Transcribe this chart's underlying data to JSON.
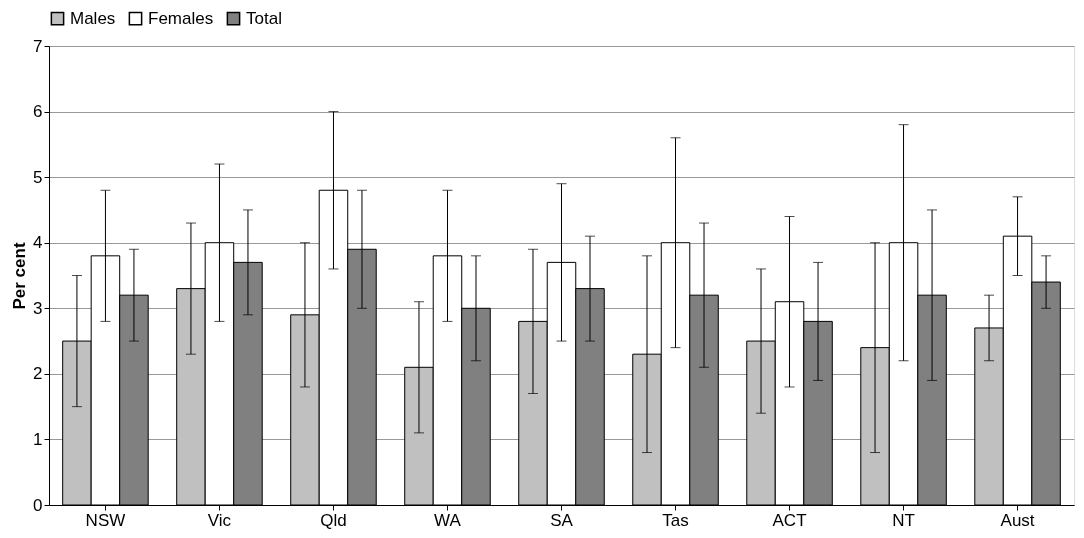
{
  "chart_data": {
    "type": "bar",
    "ylabel": "Per cent",
    "categories": [
      "NSW",
      "Vic",
      "Qld",
      "WA",
      "SA",
      "Tas",
      "ACT",
      "NT",
      "Aust"
    ],
    "series": [
      {
        "name": "Males",
        "color": "#c0c0c0",
        "values": [
          2.5,
          3.3,
          2.9,
          2.1,
          2.8,
          2.3,
          2.5,
          2.4,
          2.7
        ],
        "errors": [
          [
            1.5,
            3.5
          ],
          [
            2.3,
            4.3
          ],
          [
            1.8,
            4.0
          ],
          [
            1.1,
            3.1
          ],
          [
            1.7,
            3.9
          ],
          [
            0.8,
            3.8
          ],
          [
            1.4,
            3.6
          ],
          [
            0.8,
            4.0
          ],
          [
            2.2,
            3.2
          ]
        ]
      },
      {
        "name": "Females",
        "color": "#ffffff",
        "values": [
          3.8,
          4.0,
          4.8,
          3.8,
          3.7,
          4.0,
          3.1,
          4.0,
          4.1
        ],
        "errors": [
          [
            2.8,
            4.8
          ],
          [
            2.8,
            5.2
          ],
          [
            3.6,
            6.0
          ],
          [
            2.8,
            4.8
          ],
          [
            2.5,
            4.9
          ],
          [
            2.4,
            5.6
          ],
          [
            1.8,
            4.4
          ],
          [
            2.2,
            5.8
          ],
          [
            3.5,
            4.7
          ]
        ]
      },
      {
        "name": "Total",
        "color": "#808080",
        "values": [
          3.2,
          3.7,
          3.9,
          3.0,
          3.3,
          3.2,
          2.8,
          3.2,
          3.4
        ],
        "errors": [
          [
            2.5,
            3.9
          ],
          [
            2.9,
            4.5
          ],
          [
            3.0,
            4.8
          ],
          [
            2.2,
            3.8
          ],
          [
            2.5,
            4.1
          ],
          [
            2.1,
            4.3
          ],
          [
            1.9,
            3.7
          ],
          [
            1.9,
            4.5
          ],
          [
            3.0,
            3.8
          ]
        ]
      }
    ],
    "ylim": [
      0,
      7
    ],
    "yticks": [
      0,
      1,
      2,
      3,
      4,
      5,
      6,
      7
    ],
    "grid": "y",
    "legend": "top"
  }
}
